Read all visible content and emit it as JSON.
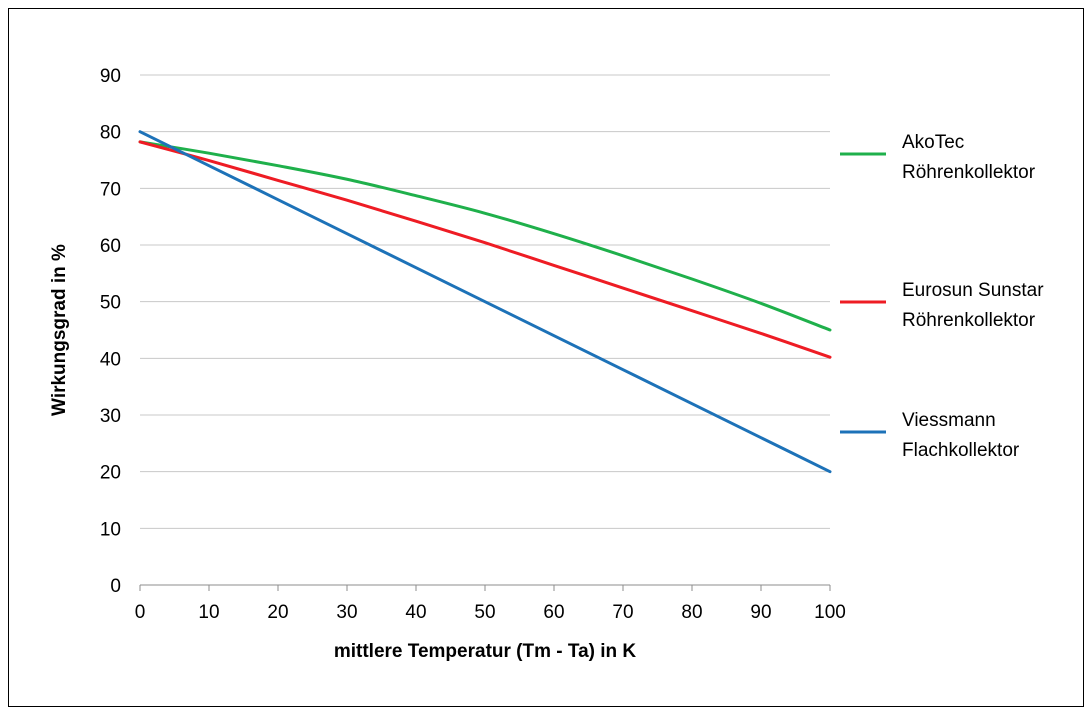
{
  "chart_data": {
    "type": "line",
    "title": "",
    "xlabel": "mittlere Temperatur (Tm - Ta)  in K",
    "ylabel": "Wirkungsgrad in %",
    "xlim": [
      0,
      100
    ],
    "ylim": [
      0,
      90
    ],
    "x_ticks": [
      0,
      10,
      20,
      30,
      40,
      50,
      60,
      70,
      80,
      90,
      100
    ],
    "y_ticks": [
      0,
      10,
      20,
      30,
      40,
      50,
      60,
      70,
      80,
      90
    ],
    "grid": "horizontal",
    "legend_position": "right",
    "x": [
      0,
      10,
      20,
      30,
      40,
      50,
      60,
      70,
      80,
      90,
      100
    ],
    "series": [
      {
        "name": "AkoTec Röhrenkollektor",
        "legend_lines": [
          "AkoTec",
          "Röhrenkollektor"
        ],
        "color": "#1fb04b",
        "values": [
          78.2,
          76.2,
          74.0,
          71.6,
          68.7,
          65.6,
          62.0,
          58.1,
          54.0,
          49.7,
          45.0
        ]
      },
      {
        "name": "Eurosun Sunstar Röhrenkollektor",
        "legend_lines": [
          "Eurosun Sunstar",
          "Röhrenkollektor"
        ],
        "color": "#ee1c24",
        "values": [
          78.2,
          74.9,
          71.4,
          67.9,
          64.2,
          60.4,
          56.4,
          52.4,
          48.4,
          44.4,
          40.2
        ]
      },
      {
        "name": "Viessmann Flachkollektor",
        "legend_lines": [
          "Viessmann",
          "Flachkollektor"
        ],
        "color": "#1d72b8",
        "values": [
          80.0,
          74.0,
          68.0,
          62.0,
          56.0,
          50.0,
          44.0,
          38.0,
          32.0,
          26.0,
          20.0
        ]
      }
    ]
  }
}
